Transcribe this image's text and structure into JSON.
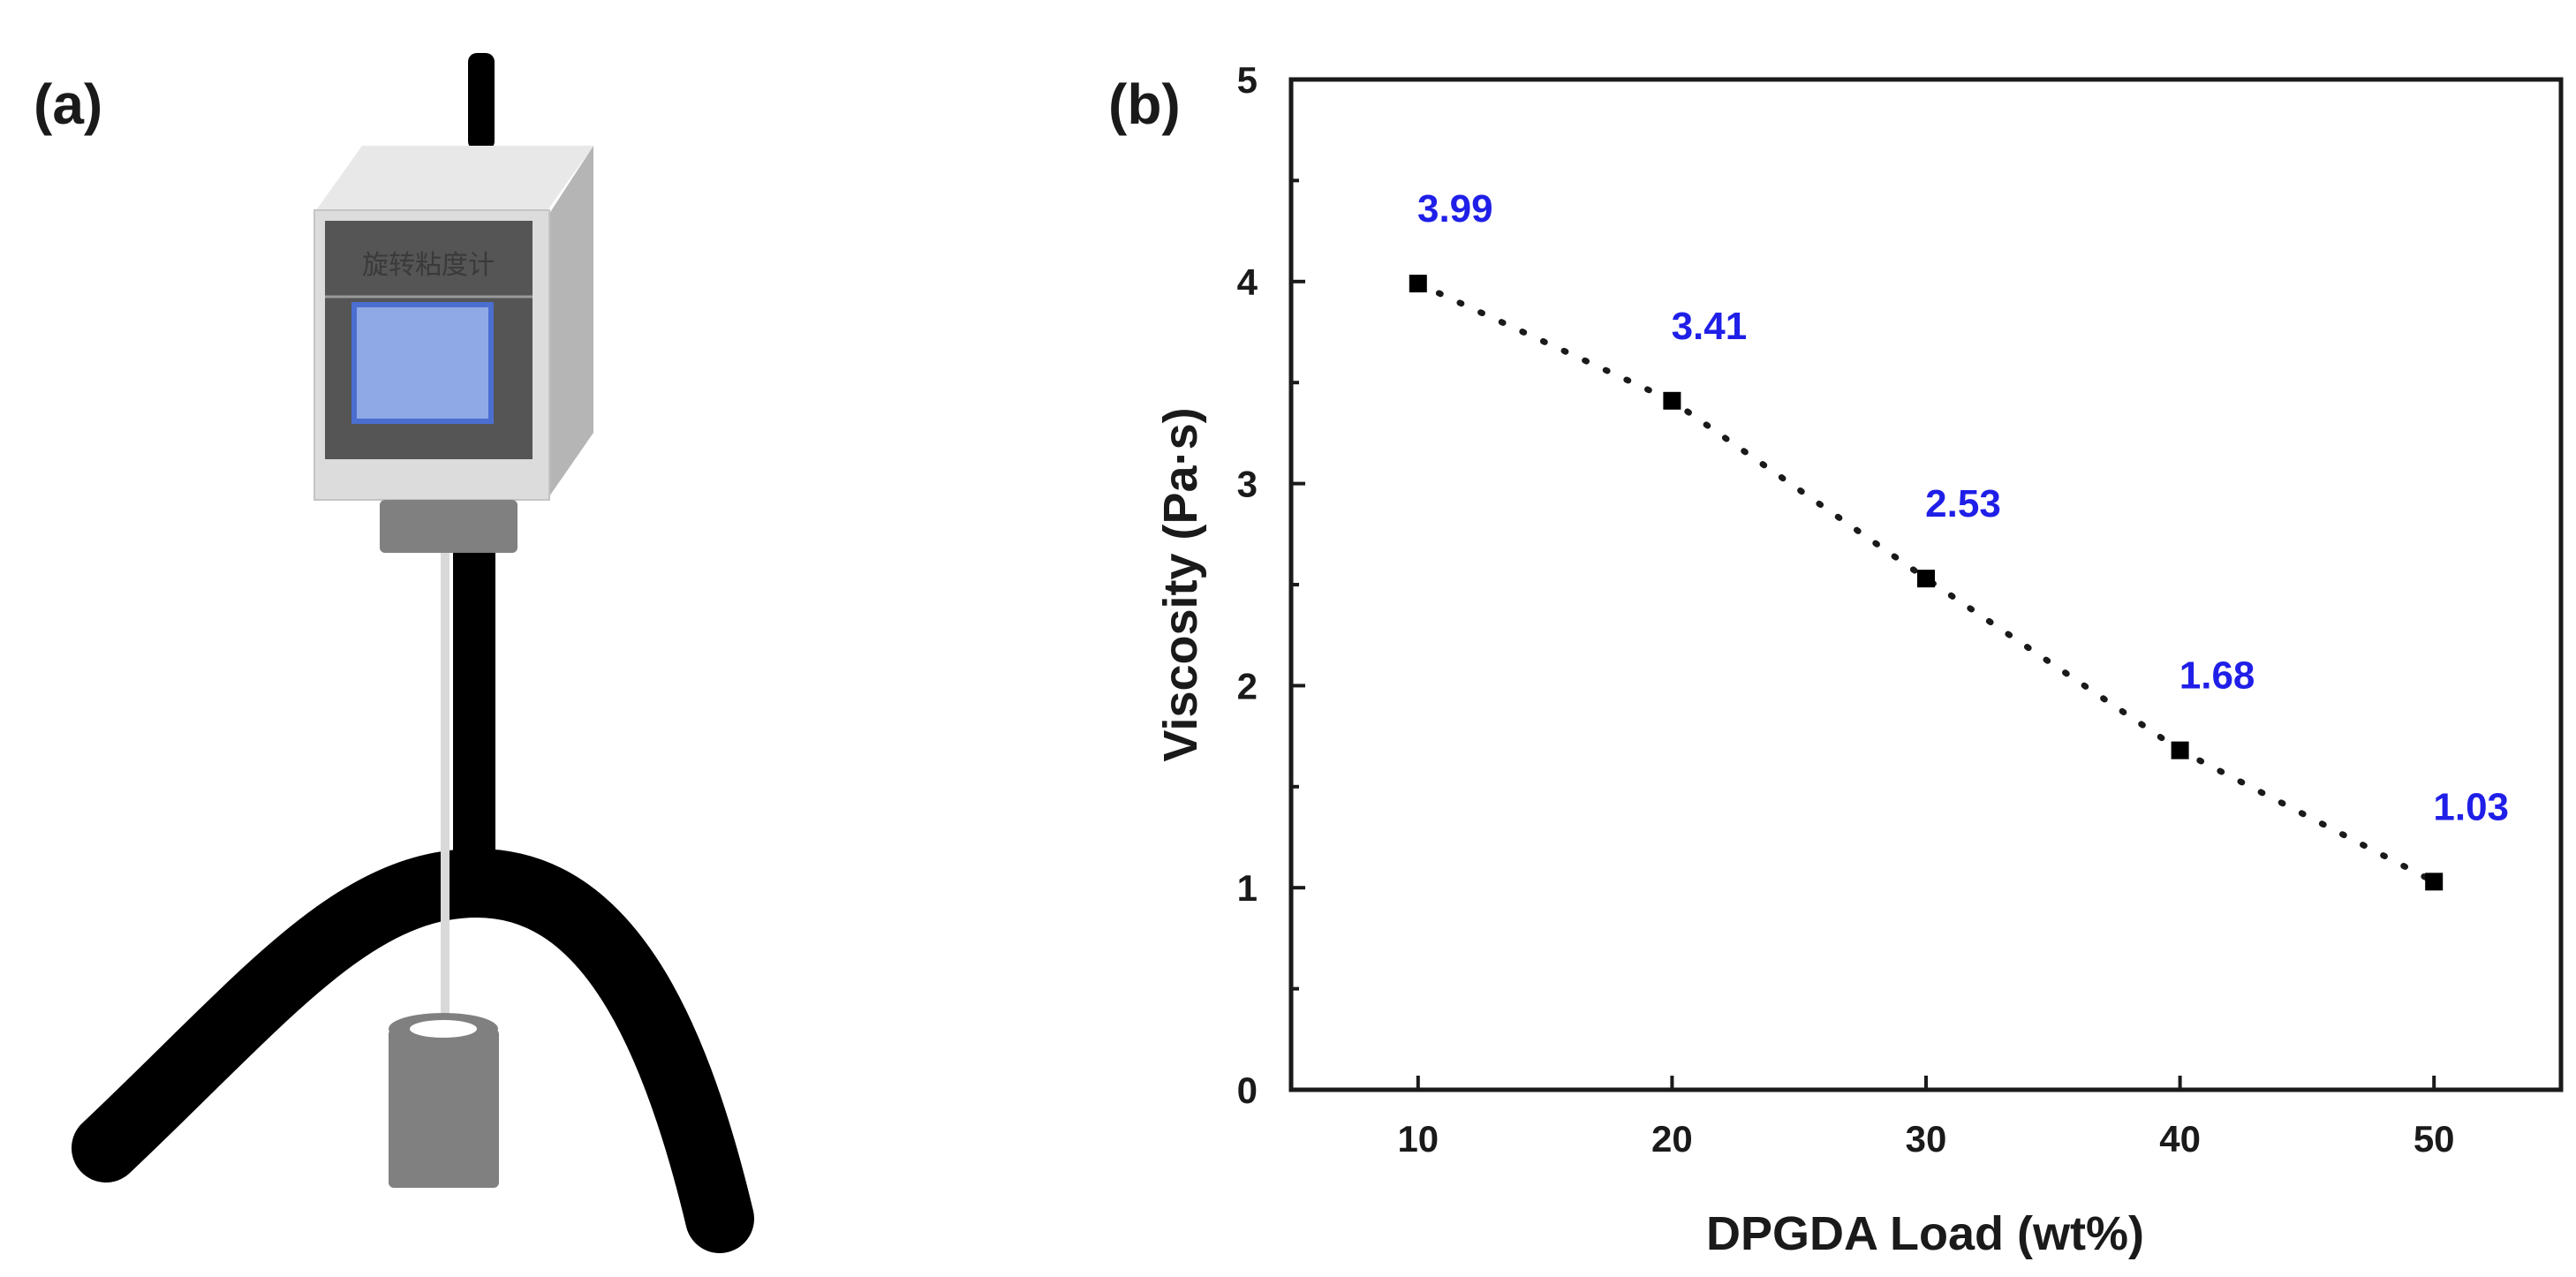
{
  "figure": {
    "panel_a_label": "(a)",
    "panel_b_label": "(b)"
  },
  "device": {
    "label": "旋转粘度计"
  },
  "colors": {
    "axis": "#1a1a1a",
    "data_label": "#1f1fe8",
    "marker": "#000000",
    "screen": "#8fa9e6",
    "screen_border": "#4a6fd0",
    "device_body": "#dcdcdc",
    "device_panel": "#555555",
    "stand": "#000000",
    "cup": "#808080"
  },
  "chart_data": {
    "type": "scatter",
    "title": "",
    "xlabel": "DPGDA Load (wt%)",
    "ylabel": "Viscosity (Pa·s)",
    "xlim": [
      5,
      55
    ],
    "ylim": [
      0,
      5
    ],
    "xticks": [
      10,
      20,
      30,
      40,
      50
    ],
    "yticks": [
      0,
      1,
      2,
      3,
      4,
      5
    ],
    "trendline": "dotted-linear",
    "grid": false,
    "series": [
      {
        "x": [
          10,
          20,
          30,
          40,
          50
        ],
        "y": [
          3.99,
          3.41,
          2.53,
          1.68,
          1.03
        ],
        "labels": [
          "3.99",
          "3.41",
          "2.53",
          "1.68",
          "1.03"
        ],
        "marker": "square"
      }
    ]
  }
}
